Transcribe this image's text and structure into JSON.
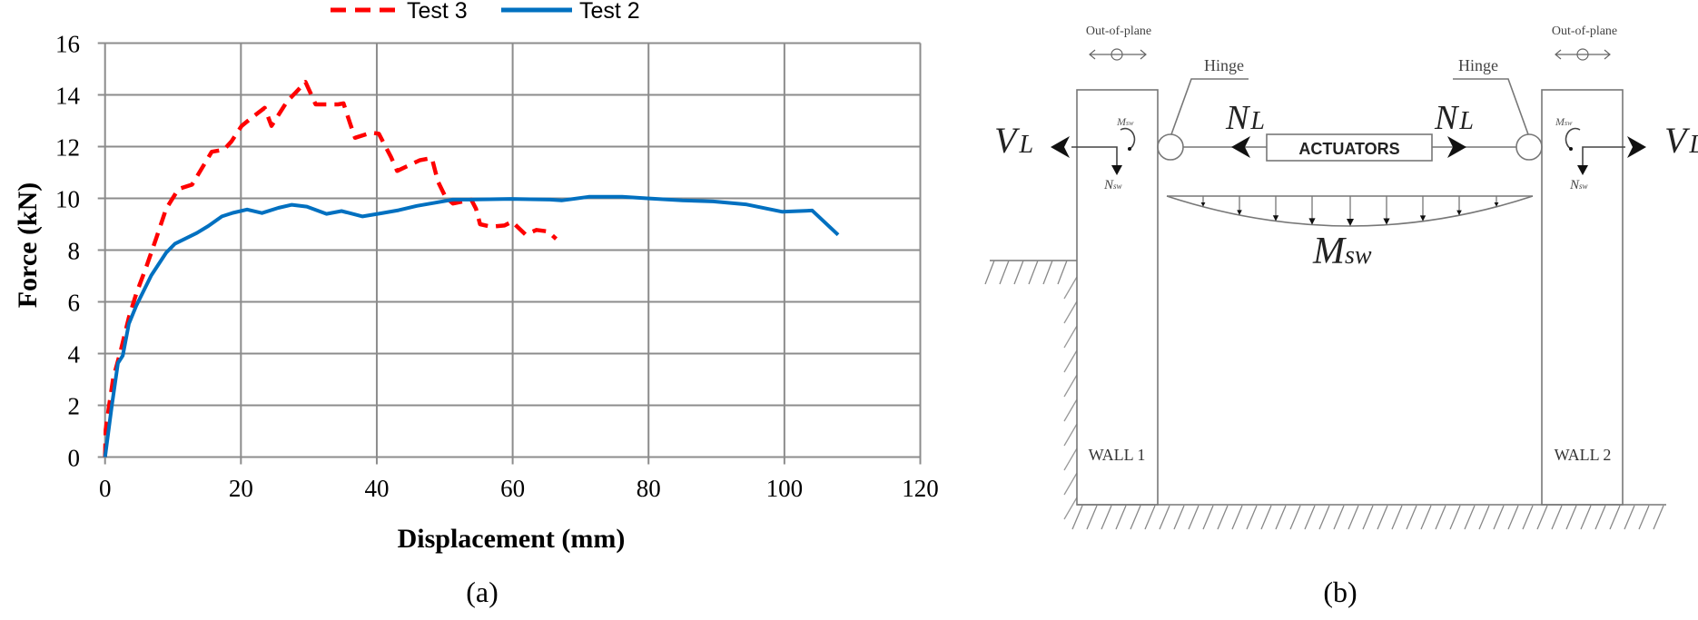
{
  "panel_a": {
    "caption": "(a)",
    "legend": [
      {
        "label": "Test 3",
        "color": "#ff0000",
        "style": "dashed"
      },
      {
        "label": "Test 2",
        "color": "#0070c0",
        "style": "solid"
      }
    ]
  },
  "panel_b": {
    "caption": "(b)",
    "labels": {
      "out_of_plane_left": "Out-of-plane",
      "out_of_plane_right": "Out-of-plane",
      "hinge_left": "Hinge",
      "hinge_right": "Hinge",
      "actuators": "ACTUATORS",
      "wall1": "WALL 1",
      "wall2": "WALL 2",
      "vl_main": "V",
      "vl_sub": "L",
      "nl_main": "N",
      "nl_sub": "L",
      "msw_main": "M",
      "msw_sub": "sw",
      "nsw_main": "N",
      "nsw_sub": "sw"
    }
  },
  "chart_data": {
    "type": "line",
    "title": "",
    "xlabel": "Displacement (mm)",
    "ylabel": "Force (kN)",
    "xlim": [
      0,
      120
    ],
    "ylim": [
      0,
      16
    ],
    "xticks": [
      0,
      20,
      40,
      60,
      80,
      100,
      120
    ],
    "yticks": [
      0,
      2,
      4,
      6,
      8,
      10,
      12,
      14,
      16
    ],
    "grid": true,
    "legend_position": "top",
    "series": [
      {
        "name": "Test 3",
        "color": "#ff0000",
        "style": "dashed",
        "x": [
          0,
          0.1,
          0.6,
          1.2,
          2.3,
          3.5,
          4.6,
          6.1,
          7.5,
          9.0,
          10.8,
          12.8,
          15.7,
          17.5,
          18.6,
          20.1,
          21.5,
          23.5,
          24.5,
          26.8,
          28.1,
          29.5,
          30.3,
          31.0,
          34.3,
          35.1,
          36.1,
          36.8,
          39.2,
          40.3,
          42.1,
          43.0,
          46.3,
          48.1,
          49.0,
          50.1,
          51.2,
          53.9,
          54.6,
          55.2,
          56.8,
          58.8,
          59.9,
          60.3,
          61.9,
          63.5,
          65.2,
          66.4
        ],
        "y": [
          0,
          1.06,
          2.0,
          3.05,
          4.1,
          5.39,
          6.32,
          7.37,
          8.43,
          9.6,
          10.36,
          10.53,
          11.8,
          11.88,
          12.2,
          12.8,
          13.1,
          13.5,
          12.8,
          13.75,
          14.1,
          14.5,
          14.04,
          13.63,
          13.63,
          13.67,
          12.87,
          12.34,
          12.54,
          12.5,
          11.59,
          11.06,
          11.47,
          11.56,
          10.65,
          10.06,
          9.8,
          9.95,
          9.6,
          9.0,
          8.9,
          8.95,
          9.1,
          9.0,
          8.6,
          8.78,
          8.72,
          8.43
        ]
      },
      {
        "name": "Test 2",
        "color": "#0070c0",
        "style": "solid",
        "x": [
          0,
          1.0,
          1.9,
          2.6,
          3.5,
          4.6,
          6.8,
          9.0,
          10.3,
          13.5,
          15.2,
          17.2,
          18.8,
          20.9,
          23.1,
          25.5,
          27.5,
          29.7,
          32.6,
          34.8,
          37.9,
          40.6,
          43.2,
          45.9,
          48.6,
          51.2,
          53.5,
          59.7,
          65.5,
          67.2,
          71.2,
          76.1,
          79.8,
          85.0,
          89.5,
          94.3,
          99.7,
          104.1,
          107.9
        ],
        "y": [
          0,
          2.0,
          3.63,
          3.92,
          5.15,
          5.85,
          7.02,
          7.9,
          8.25,
          8.66,
          8.93,
          9.3,
          9.44,
          9.57,
          9.43,
          9.63,
          9.75,
          9.68,
          9.4,
          9.51,
          9.3,
          9.42,
          9.54,
          9.71,
          9.83,
          9.95,
          9.95,
          9.98,
          9.95,
          9.92,
          10.06,
          10.06,
          10.0,
          9.92,
          9.88,
          9.77,
          9.48,
          9.53,
          8.59
        ]
      }
    ]
  }
}
